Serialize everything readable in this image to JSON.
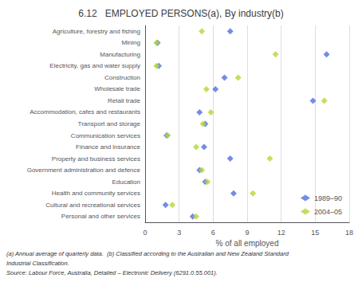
{
  "chart_data": {
    "type": "scatter",
    "orientation": "horizontal",
    "title": "6.12   EMPLOYED PERSONS(a), By industry(b)",
    "xlabel": "% of all employed",
    "xlim": [
      0,
      18
    ],
    "xticks": [
      0,
      3,
      6,
      9,
      12,
      15,
      18
    ],
    "categories": [
      "Agriculture, forestry and fishing",
      "Mining",
      "Manufacturing",
      "Electricity, gas and water supply",
      "Construction",
      "Wholesale trade",
      "Retail trade",
      "Accommodation, cafes and restaurants",
      "Transport and storage",
      "Communication services",
      "Finance and insurance",
      "Property and business services",
      "Government administration and defence",
      "Education",
      "Health and community services",
      "Cultural and recreational services",
      "Personal and other services"
    ],
    "series": [
      {
        "name": "1989–90",
        "marker": "diamond",
        "values": [
          7.5,
          1.1,
          16.0,
          1.2,
          7.0,
          6.2,
          14.8,
          4.8,
          5.3,
          1.9,
          5.2,
          7.5,
          4.8,
          5.3,
          7.8,
          1.8,
          4.2
        ]
      },
      {
        "name": "2004–05",
        "marker": "diamond",
        "values": [
          5.0,
          1.0,
          11.5,
          1.0,
          8.2,
          5.4,
          15.8,
          5.8,
          5.1,
          2.0,
          4.5,
          11.0,
          5.0,
          5.5,
          9.5,
          2.4,
          4.5
        ]
      }
    ],
    "legend": "lower right",
    "grid": true,
    "annotations": [
      "(a) Annual average of quarterly data.  (b) Classified according to the Australian and New Zealand Standard",
      "Industrial Classification.",
      "Source: Labour Force, Australia, Detailed – Electronic Delivery (6291.0.55.001)."
    ]
  }
}
